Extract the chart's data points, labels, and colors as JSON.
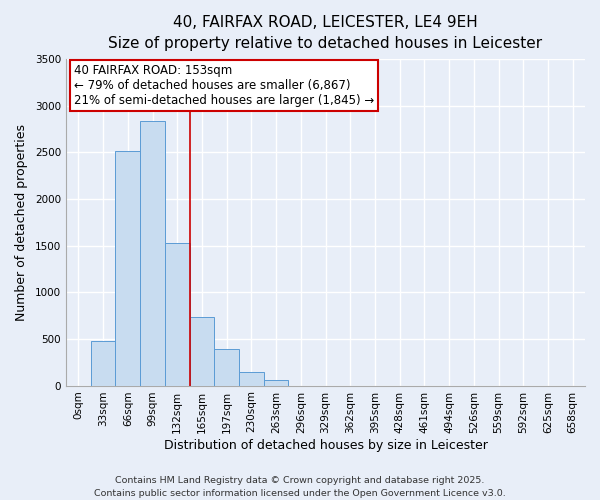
{
  "title": "40, FAIRFAX ROAD, LEICESTER, LE4 9EH",
  "subtitle": "Size of property relative to detached houses in Leicester",
  "xlabel": "Distribution of detached houses by size in Leicester",
  "ylabel": "Number of detached properties",
  "bar_labels": [
    "0sqm",
    "33sqm",
    "66sqm",
    "99sqm",
    "132sqm",
    "165sqm",
    "197sqm",
    "230sqm",
    "263sqm",
    "296sqm",
    "329sqm",
    "362sqm",
    "395sqm",
    "428sqm",
    "461sqm",
    "494sqm",
    "526sqm",
    "559sqm",
    "592sqm",
    "625sqm",
    "658sqm"
  ],
  "bar_values": [
    0,
    480,
    2520,
    2840,
    1530,
    740,
    395,
    145,
    60,
    0,
    0,
    0,
    0,
    0,
    0,
    0,
    0,
    0,
    0,
    0,
    0
  ],
  "bar_color": "#c8dcf0",
  "bar_edge_color": "#5b9bd5",
  "vline_x": 4.5,
  "annotation_line1": "40 FAIRFAX ROAD: 153sqm",
  "annotation_line2": "← 79% of detached houses are smaller (6,867)",
  "annotation_line3": "21% of semi-detached houses are larger (1,845) →",
  "annotation_box_facecolor": "#ffffff",
  "annotation_box_edgecolor": "#cc0000",
  "vline_color": "#cc0000",
  "ylim": [
    0,
    3500
  ],
  "yticks": [
    0,
    500,
    1000,
    1500,
    2000,
    2500,
    3000,
    3500
  ],
  "footnote1": "Contains HM Land Registry data © Crown copyright and database right 2025.",
  "footnote2": "Contains public sector information licensed under the Open Government Licence v3.0.",
  "bg_color": "#e8eef8",
  "plot_bg_color": "#e8eef8",
  "title_fontsize": 11,
  "subtitle_fontsize": 9.5,
  "axis_label_fontsize": 9,
  "tick_fontsize": 7.5,
  "annotation_fontsize": 8.5,
  "footnote_fontsize": 6.8,
  "grid_color": "#ffffff",
  "spine_color": "#aaaaaa"
}
